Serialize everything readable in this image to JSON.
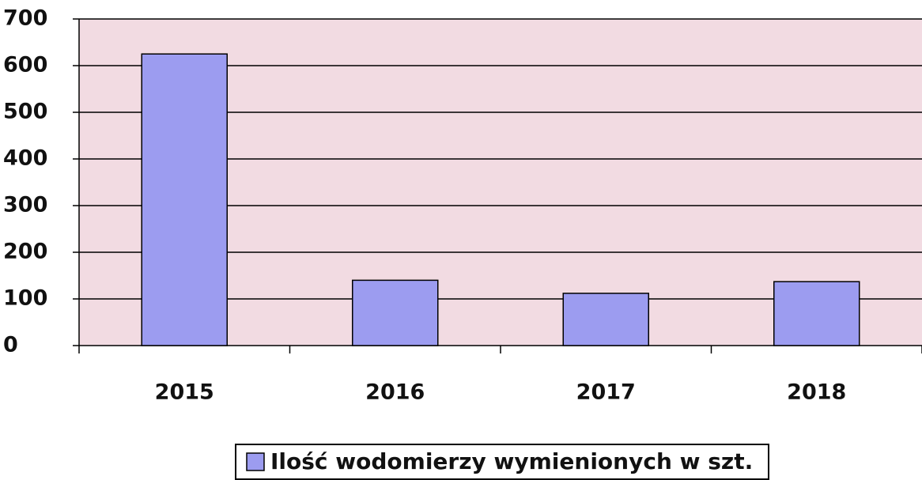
{
  "chart_data": {
    "type": "bar",
    "categories": [
      "2015",
      "2016",
      "2017",
      "2018"
    ],
    "series": [
      {
        "name": "Ilość wodomierzy wymienionych w szt.",
        "color": "#9c9cf0",
        "values": [
          625,
          140,
          112,
          137
        ]
      }
    ],
    "ylim": [
      0,
      700
    ],
    "yticks": [
      0,
      100,
      200,
      300,
      400,
      500,
      600,
      700
    ],
    "grid": true,
    "legend": "bottom"
  }
}
